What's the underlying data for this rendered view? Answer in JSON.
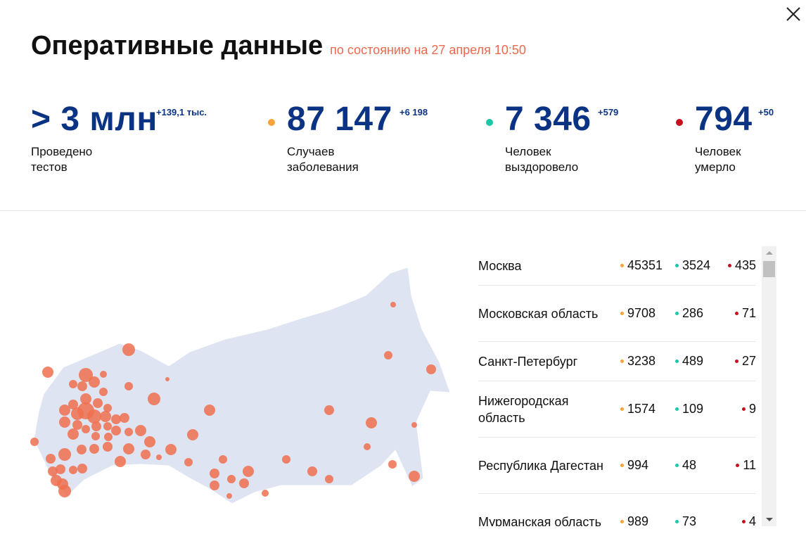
{
  "header": {
    "title": "Оперативные данные",
    "subtitle": "по состоянию на 27 апреля 10:50",
    "close_icon": "close-icon"
  },
  "colors": {
    "title_blue": "#0b3383",
    "accent": "#ec6a4f",
    "cases": "#f7a33a",
    "recovered": "#1dc6a8",
    "deaths": "#c8101e",
    "map_land": "#dfe4f3",
    "map_marker": "#f0704f"
  },
  "stats": [
    {
      "value": "> 3 млн",
      "delta": "+139,1 тыс.",
      "label_line1": "Проведено",
      "label_line2": "тестов"
    },
    {
      "value": "87 147",
      "delta": "+6 198",
      "label_line1": "Случаев",
      "label_line2": "заболевания"
    },
    {
      "value": "7 346",
      "delta": "+579",
      "label_line1": "Человек",
      "label_line2": "выздоровело"
    },
    {
      "value": "794",
      "delta": "+50",
      "label_line1": "Человек",
      "label_line2": "умерло"
    }
  ],
  "regions": [
    {
      "name": "Москва",
      "cases": "45351",
      "recovered": "3524",
      "deaths": "435"
    },
    {
      "name": "Московская область",
      "cases": "9708",
      "recovered": "286",
      "deaths": "71"
    },
    {
      "name": "Санкт-Петербург",
      "cases": "3238",
      "recovered": "489",
      "deaths": "27"
    },
    {
      "name": "Нижегородская область",
      "cases": "1574",
      "recovered": "109",
      "deaths": "9"
    },
    {
      "name": "Республика Дагестан",
      "cases": "994",
      "recovered": "48",
      "deaths": "11"
    },
    {
      "name": "Мурманская область",
      "cases": "989",
      "recovered": "73",
      "deaths": "4"
    }
  ]
}
